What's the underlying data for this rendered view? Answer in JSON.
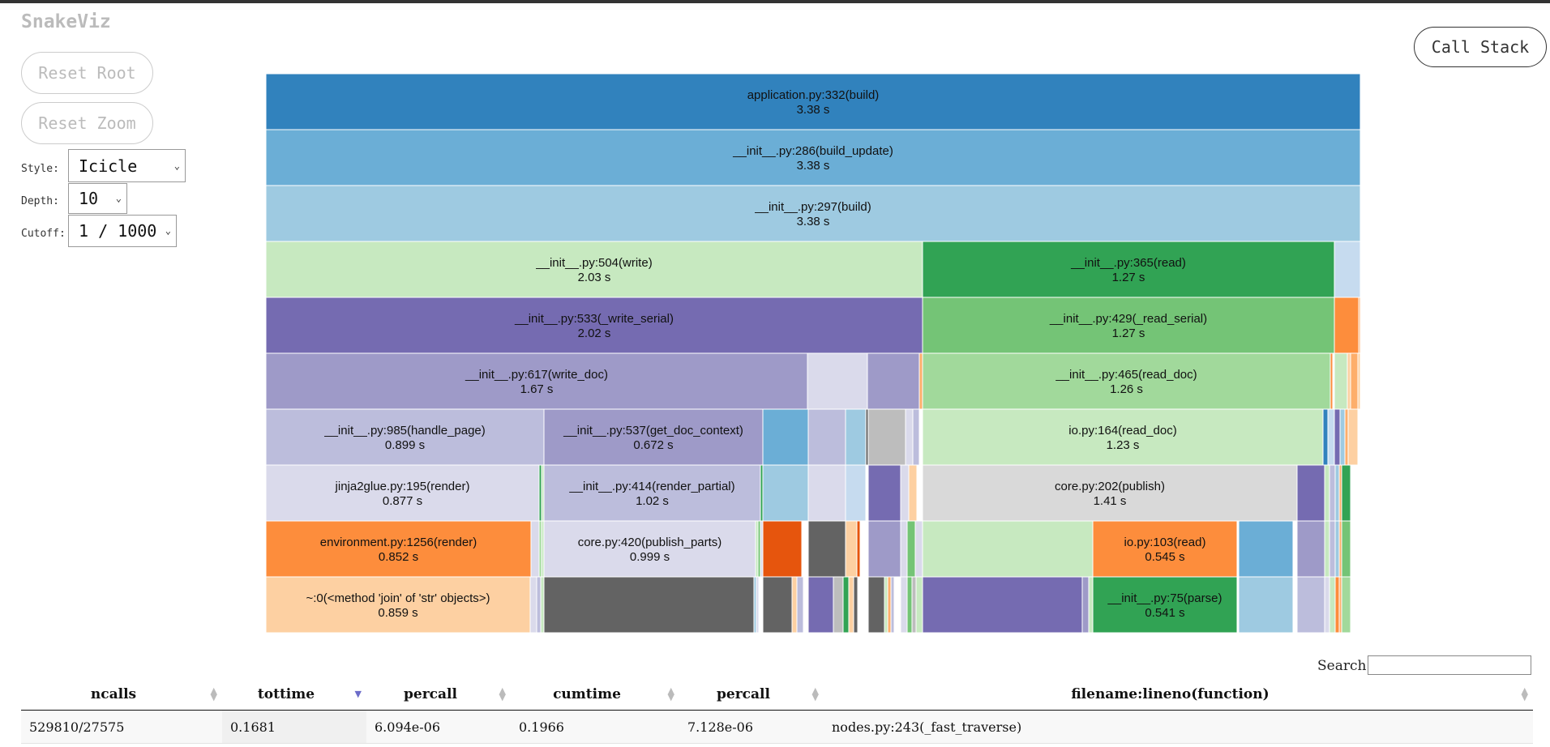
{
  "app": {
    "title": "SnakeViz"
  },
  "controls": {
    "reset_root_label": "Reset Root",
    "reset_zoom_label": "Reset Zoom",
    "call_stack_label": "Call Stack",
    "style_label": "Style:",
    "style_value": "Icicle",
    "depth_label": "Depth:",
    "depth_value": "10",
    "cutoff_label": "Cutoff:",
    "cutoff_value": "1 / 1000",
    "dropdown_icon": "chevron-down-icon"
  },
  "icicle": {
    "labeled_blocks": [
      {
        "name": "application.py:332(build)",
        "time": "3.38 s",
        "color": "#3182bd"
      },
      {
        "name": "__init__.py:286(build_update)",
        "time": "3.38 s",
        "color": "#6baed6"
      },
      {
        "name": "__init__.py:297(build)",
        "time": "3.38 s",
        "color": "#9ecae1"
      },
      {
        "name": "__init__.py:504(write)",
        "time": "2.03 s",
        "color": "#c7e9c0"
      },
      {
        "name": "__init__.py:365(read)",
        "time": "1.27 s",
        "color": "#31a354"
      },
      {
        "name": "__init__.py:533(_write_serial)",
        "time": "2.02 s",
        "color": "#756bb1"
      },
      {
        "name": "__init__.py:429(_read_serial)",
        "time": "1.27 s",
        "color": "#74c476"
      },
      {
        "name": "__init__.py:617(write_doc)",
        "time": "1.67 s",
        "color": "#9e9ac8"
      },
      {
        "name": "__init__.py:465(read_doc)",
        "time": "1.26 s",
        "color": "#a1d99b"
      },
      {
        "name": "__init__.py:985(handle_page)",
        "time": "0.899 s",
        "color": "#bcbddc"
      },
      {
        "name": "__init__.py:537(get_doc_context)",
        "time": "0.672 s",
        "color": "#9e9ac8"
      },
      {
        "name": "io.py:164(read_doc)",
        "time": "1.23 s",
        "color": "#c7e9c0"
      },
      {
        "name": "jinja2glue.py:195(render)",
        "time": "0.877 s",
        "color": "#dadaeb"
      },
      {
        "name": "__init__.py:414(render_partial)",
        "time": "1.02 s",
        "color": "#bcbddc"
      },
      {
        "name": "core.py:202(publish)",
        "time": "1.41 s",
        "color": "#d9d9d9"
      },
      {
        "name": "environment.py:1256(render)",
        "time": "0.852 s",
        "color": "#fd8d3c"
      },
      {
        "name": "core.py:420(publish_parts)",
        "time": "0.999 s",
        "color": "#dadaeb"
      },
      {
        "name": "io.py:103(read)",
        "time": "0.545 s",
        "color": "#fd8d3c"
      },
      {
        "name": "~:0(<method 'join' of 'str' objects>)",
        "time": "0.859 s",
        "color": "#fdd0a2"
      },
      {
        "name": "__init__.py:75(parse)",
        "time": "0.541 s",
        "color": "#31a354"
      }
    ]
  },
  "search": {
    "label": "Search:",
    "value": ""
  },
  "table": {
    "columns": [
      "ncalls",
      "tottime",
      "percall",
      "cumtime",
      "percall",
      "filename:lineno(function)"
    ],
    "sorted_column": "tottime",
    "rows": [
      [
        "529810/27575",
        "0.1681",
        "6.094e-06",
        "0.1966",
        "7.128e-06",
        "nodes.py:243(_fast_traverse)"
      ]
    ]
  }
}
